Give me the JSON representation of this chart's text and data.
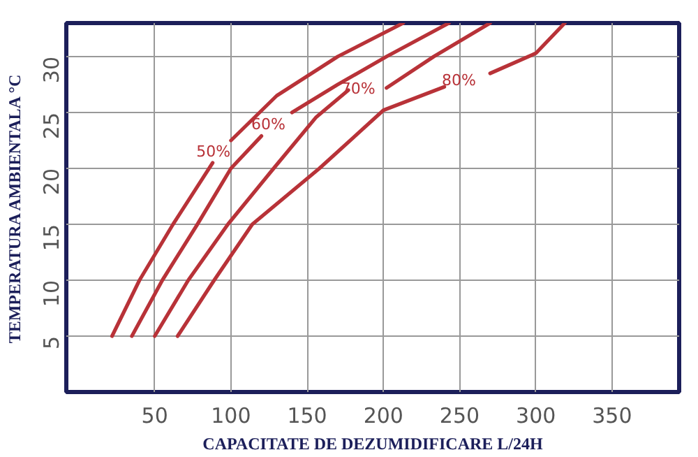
{
  "chart_data": {
    "type": "line",
    "xlabel": "CAPACITATE DE DEZUMIDIFICARE L/24H",
    "ylabel": "TEMPERATURA AMBIENTALA °C",
    "xlim": [
      -8,
      394
    ],
    "ylim": [
      0,
      33
    ],
    "xticks": [
      50,
      100,
      150,
      200,
      250,
      300,
      350
    ],
    "yticks": [
      5,
      10,
      15,
      20,
      25,
      30
    ],
    "grid": true,
    "marker": "none",
    "line_style": "solid",
    "series": [
      {
        "name": "50%",
        "color": "#b83238",
        "x": [
          22,
          40,
          62,
          88,
          94,
          100,
          130,
          170,
          213
        ],
        "values": [
          5,
          10,
          15,
          20.5,
          null,
          22.5,
          26.5,
          30,
          33
        ]
      },
      {
        "name": "60%",
        "color": "#b83238",
        "x": [
          35,
          55,
          78,
          100,
          120,
          130,
          140,
          170,
          202,
          243
        ],
        "values": [
          5,
          10,
          15,
          20,
          22.9,
          null,
          25,
          27.5,
          30,
          33
        ]
      },
      {
        "name": "70%",
        "color": "#b83238",
        "x": [
          50,
          72,
          98,
          128,
          156,
          177,
          189,
          202,
          233,
          270
        ],
        "values": [
          5,
          10,
          15,
          20,
          24.6,
          27,
          null,
          27.2,
          30,
          33
        ]
      },
      {
        "name": "80%",
        "color": "#b83238",
        "x": [
          65,
          89,
          114,
          158,
          200,
          240,
          255,
          270,
          300,
          319
        ],
        "values": [
          5,
          10,
          15,
          20,
          25.2,
          27.3,
          null,
          28.5,
          30.3,
          33
        ]
      }
    ]
  }
}
